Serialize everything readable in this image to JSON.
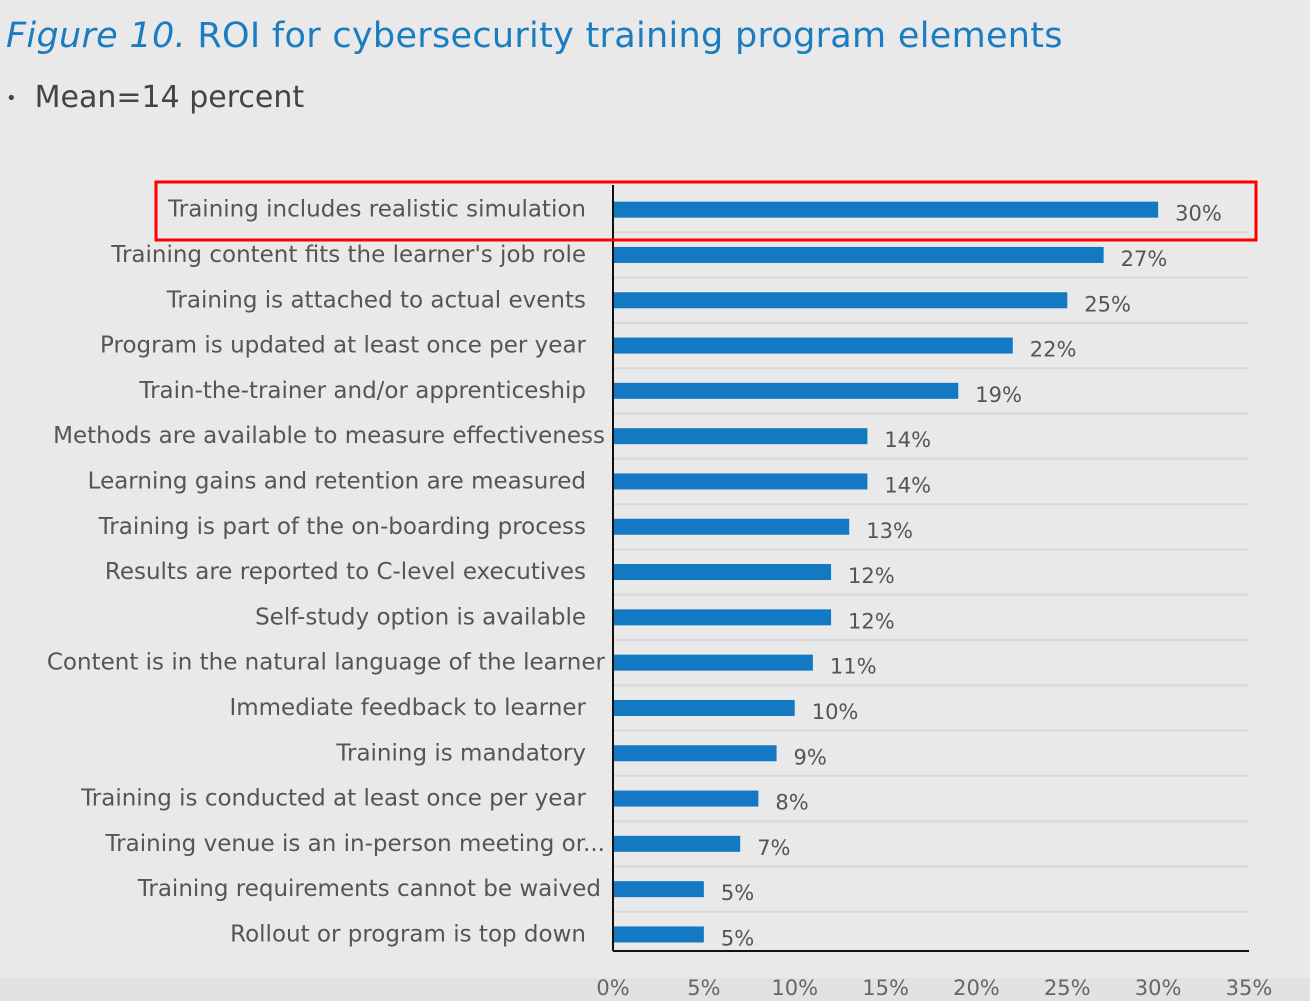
{
  "header": {
    "figure_label": "Figure 10.",
    "title": "ROI for cybersecurity training program elements",
    "bullet": "Mean=14 percent"
  },
  "chart_data": {
    "type": "bar",
    "orientation": "horizontal",
    "categories": [
      "Training includes realistic simulation",
      "Training content fits the learner's job role",
      "Training is attached to actual events",
      "Program is updated at least once per year",
      "Train-the-trainer and/or apprenticeship",
      "Methods are available to measure effectiveness",
      "Learning gains and retention are measured",
      "Training is part of the on-boarding process",
      "Results are reported to C-level executives",
      "Self-study option is available",
      "Content is in the natural language of the learner",
      "Immediate feedback to learner",
      "Training is mandatory",
      "Training is conducted at least once per year",
      "Training venue is an in-person meeting or...",
      "Training requirements cannot be waived",
      "Rollout or program is top down"
    ],
    "values": [
      30,
      27,
      25,
      22,
      19,
      14,
      14,
      13,
      12,
      12,
      11,
      10,
      9,
      8,
      7,
      5,
      5
    ],
    "data_labels": [
      "30%",
      "27%",
      "25%",
      "22%",
      "19%",
      "14%",
      "14%",
      "13%",
      "12%",
      "12%",
      "11%",
      "10%",
      "9%",
      "8%",
      "7%",
      "5%",
      "5%"
    ],
    "xlim": [
      0,
      35
    ],
    "xticks": [
      "0%",
      "5%",
      "10%",
      "15%",
      "20%",
      "25%",
      "30%",
      "35%"
    ],
    "bar_color": "#1479c3",
    "highlight_color": "#ff0000",
    "highlighted_category": "Training includes realistic simulation",
    "grid": "horizontal row separators"
  }
}
